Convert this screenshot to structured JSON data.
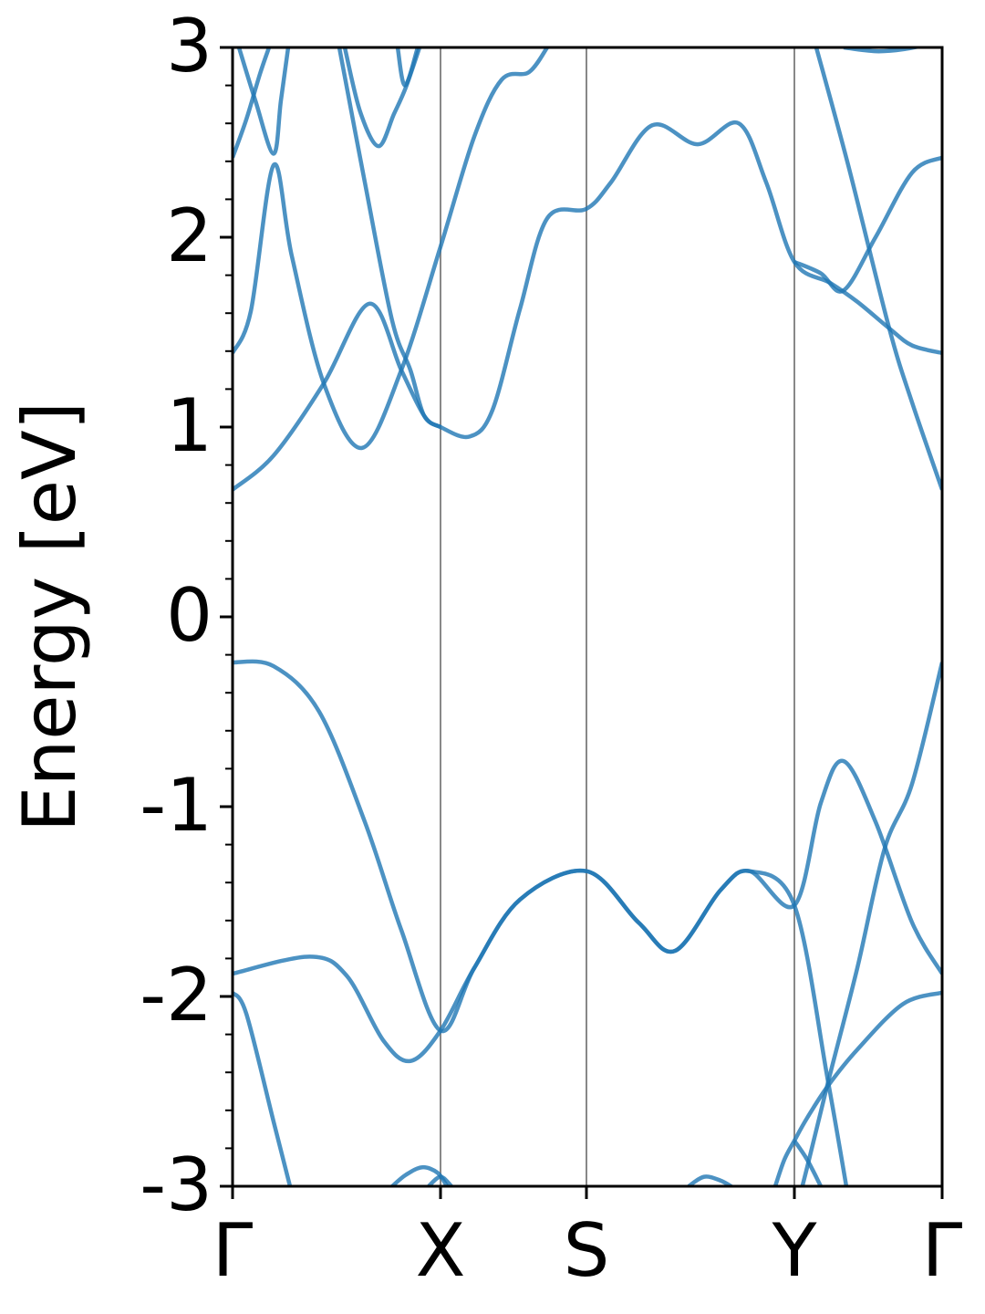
{
  "chart_data": {
    "type": "line",
    "ylabel": "Energy [eV]",
    "color": "#1f77b4",
    "opacity": 0.8,
    "xlim": [
      0,
      7.78
    ],
    "xticks": [
      {
        "value": 0,
        "label": "Γ"
      },
      {
        "value": 2.28,
        "label": "X"
      },
      {
        "value": 3.88,
        "label": "S"
      },
      {
        "value": 6.16,
        "label": "Y"
      },
      {
        "value": 7.78,
        "label": "Γ"
      }
    ],
    "ylim": [
      -3,
      3
    ],
    "yticks": [
      3,
      2,
      1,
      0,
      -1,
      -2,
      -3
    ],
    "yminorticks": [
      -2.8,
      -2.6,
      -2.4,
      -2.2,
      -1.8,
      -1.6,
      -1.4,
      -1.2,
      -0.8,
      -0.6,
      -0.4,
      -0.2,
      0.2,
      0.4,
      0.6,
      0.8,
      1.2,
      1.4,
      1.6,
      1.8,
      2.2,
      2.4,
      2.6,
      2.8
    ],
    "vlines": true,
    "series": [
      {
        "x": [
          0,
          0.45,
          0.95,
          1.45,
          1.85,
          2.28,
          2.65,
          3.15,
          3.88,
          4.45,
          4.85,
          5.35,
          5.67,
          6.16,
          6.45,
          6.7,
          7.05,
          7.45,
          7.78
        ],
        "values": [
          -0.24,
          -0.26,
          -0.5,
          -1.08,
          -1.65,
          -2.18,
          -1.85,
          -1.49,
          -1.34,
          -1.61,
          -1.76,
          -1.44,
          -1.34,
          -1.52,
          -0.98,
          -0.76,
          -1.08,
          -1.61,
          -1.88
        ]
      },
      {
        "x": [
          0,
          0.85,
          1.25,
          1.65,
          1.95,
          2.28,
          2.65,
          3.15,
          3.88,
          4.45,
          4.85,
          5.35,
          5.67,
          6.16,
          6.53,
          6.8
        ],
        "values": [
          -1.88,
          -1.79,
          -1.89,
          -2.23,
          -2.34,
          -2.18,
          -1.85,
          -1.49,
          -1.34,
          -1.61,
          -1.76,
          -1.44,
          -1.34,
          -1.52,
          -2.45,
          -3.2
        ]
      },
      {
        "x": [
          6.22,
          6.3,
          6.53,
          6.85,
          7.15,
          7.45,
          7.78
        ],
        "values": [
          -3.05,
          -2.9,
          -2.45,
          -1.85,
          -1.22,
          -0.88,
          -0.24
        ]
      },
      {
        "x": [
          0,
          0.15,
          0.45,
          0.63,
          0.7
        ],
        "values": [
          -1.98,
          -2.09,
          -2.66,
          -3.0,
          -3.15
        ]
      },
      {
        "x": [
          5.95,
          6.05,
          6.16,
          6.3,
          6.53,
          6.85,
          7.35,
          7.78
        ],
        "values": [
          -3.0,
          -2.86,
          -2.76,
          -2.64,
          -2.47,
          -2.28,
          -2.04,
          -1.98
        ]
      },
      {
        "x": [
          6.16,
          6.3,
          6.45
        ],
        "values": [
          -2.76,
          -2.86,
          -3.0
        ]
      },
      {
        "x": [
          1.75,
          1.9,
          2.08,
          2.25,
          2.35
        ],
        "values": [
          -3.0,
          -2.94,
          -2.9,
          -2.93,
          -3.0
        ]
      },
      {
        "x": [
          2.15,
          2.28,
          2.4
        ],
        "values": [
          -3.0,
          -2.95,
          -3.0
        ]
      },
      {
        "x": [
          5.0,
          5.17,
          5.35,
          5.5
        ],
        "values": [
          -3.0,
          -2.95,
          -2.97,
          -3.01
        ]
      },
      {
        "x": [
          0,
          0.45,
          1.0,
          1.5,
          1.85,
          2.1,
          2.28,
          2.6,
          2.85,
          3.15,
          3.45,
          3.88,
          4.15,
          4.6,
          5.1,
          5.55,
          5.85,
          6.16,
          6.55,
          6.85,
          7.2,
          7.45,
          7.78
        ],
        "values": [
          0.67,
          0.85,
          1.23,
          1.65,
          1.3,
          1.06,
          1.0,
          0.95,
          1.09,
          1.62,
          2.1,
          2.15,
          2.29,
          2.59,
          2.49,
          2.6,
          2.29,
          1.87,
          1.76,
          1.66,
          1.52,
          1.43,
          1.39
        ]
      },
      {
        "x": [
          0,
          0.2,
          0.45,
          0.65,
          1.0,
          1.42,
          1.85,
          2.28,
          2.65,
          2.95,
          3.25,
          3.45
        ],
        "values": [
          1.39,
          1.61,
          2.38,
          1.9,
          1.23,
          0.89,
          1.3,
          1.95,
          2.53,
          2.83,
          2.87,
          3.0
        ]
      },
      {
        "x": [
          0,
          0.15,
          0.3,
          0.4
        ],
        "values": [
          2.42,
          2.62,
          2.86,
          3.0
        ]
      },
      {
        "x": [
          0.07,
          0.25,
          0.45,
          0.53,
          0.61
        ],
        "values": [
          3.0,
          2.72,
          2.44,
          2.72,
          3.0
        ]
      },
      {
        "x": [
          1.17,
          1.45,
          1.75,
          1.95,
          2.1,
          2.28
        ],
        "values": [
          3.0,
          2.29,
          1.56,
          1.3,
          1.06,
          1.0
        ]
      },
      {
        "x": [
          1.23,
          1.4,
          1.6,
          1.77,
          1.9,
          2.05
        ],
        "values": [
          3.0,
          2.66,
          2.48,
          2.65,
          2.79,
          3.0
        ]
      },
      {
        "x": [
          1.81,
          1.89,
          2.03
        ],
        "values": [
          3.0,
          2.8,
          3.0
        ]
      },
      {
        "x": [
          6.7,
          7.05,
          7.35,
          7.78
        ],
        "values": [
          3.0,
          2.98,
          2.99,
          3.03
        ]
      },
      {
        "x": [
          6.4,
          6.75,
          7.2,
          7.45,
          7.78
        ],
        "values": [
          3.0,
          2.38,
          1.52,
          1.13,
          0.67
        ]
      },
      {
        "x": [
          6.16,
          6.45,
          6.7,
          7.05,
          7.45,
          7.78
        ],
        "values": [
          1.87,
          1.81,
          1.72,
          2.0,
          2.34,
          2.42
        ]
      }
    ]
  }
}
